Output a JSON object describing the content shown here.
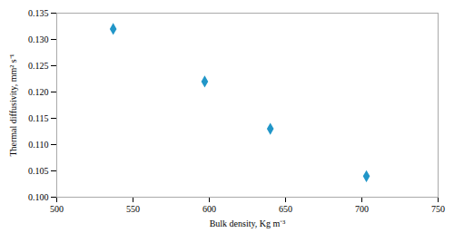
{
  "chart_data": {
    "type": "scatter",
    "x": [
      537,
      597,
      640,
      703
    ],
    "y": [
      0.132,
      0.122,
      0.113,
      0.104
    ],
    "xlabel": "Bulk density, Kg m⁻³",
    "ylabel": "Thermal diffusivity, mm² s⁻¹",
    "xlim": [
      500,
      750
    ],
    "ylim": [
      0.1,
      0.135
    ],
    "xticks": [
      500,
      550,
      600,
      650,
      700,
      750
    ],
    "yticks": [
      {
        "value": 0.1,
        "label": "0.100"
      },
      0.105,
      {
        "value": 0.11,
        "label": "0.110"
      },
      0.115,
      {
        "value": 0.12,
        "label": "0.120"
      },
      0.125,
      {
        "value": 0.13,
        "label": "0.130"
      },
      0.135
    ],
    "color": "#2196C8",
    "marker": "diamond"
  }
}
